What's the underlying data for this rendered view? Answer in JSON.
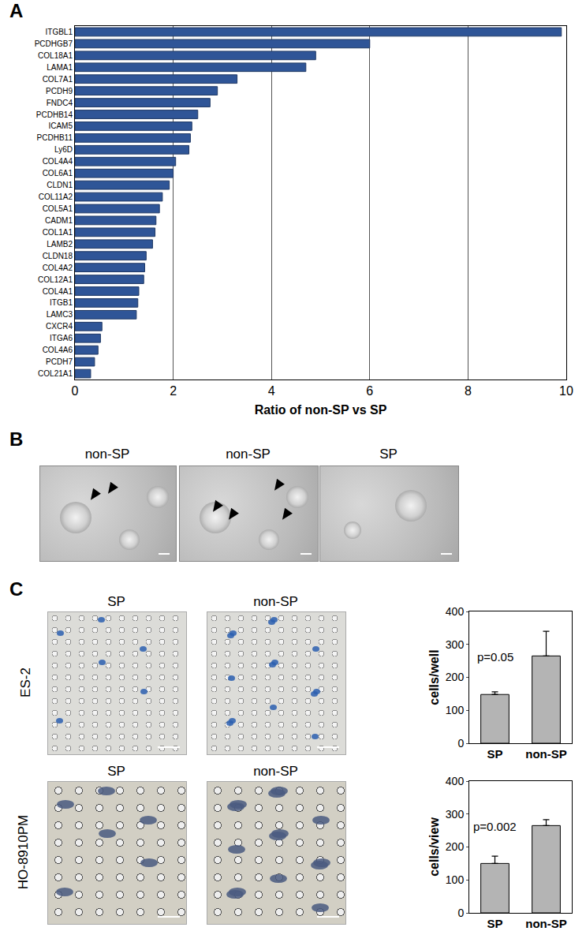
{
  "panel_labels": [
    "A",
    "B",
    "C"
  ],
  "chart_data": [
    {
      "type": "bar",
      "orientation": "horizontal",
      "categories": [
        "ITGBL1",
        "PCDHGB7",
        "COL18A1",
        "LAMA1",
        "COL7A1",
        "PCDH9",
        "FNDC4",
        "PCDHB14",
        "ICAM5",
        "PCDHB11",
        "Ly6D",
        "COL4A4",
        "COL6A1",
        "CLDN1",
        "COL11A2",
        "COL5A1",
        "CADM1",
        "COL1A1",
        "LAMB2",
        "CLDN18",
        "COL4A2",
        "COL12A1",
        "COL4A1",
        "ITGB1",
        "LAMC3",
        "CXCR4",
        "ITGA6",
        "COL4A6",
        "PCDH7",
        "COL21A1"
      ],
      "values": [
        9.9,
        6.0,
        4.9,
        4.7,
        3.3,
        2.9,
        2.75,
        2.5,
        2.38,
        2.35,
        2.32,
        2.05,
        2.0,
        1.92,
        1.78,
        1.72,
        1.65,
        1.63,
        1.58,
        1.45,
        1.42,
        1.4,
        1.3,
        1.28,
        1.25,
        0.55,
        0.52,
        0.47,
        0.4,
        0.32
      ],
      "color": "#2f5597",
      "xlabel": "Ratio of non-SP vs SP",
      "xlim": [
        0,
        10
      ],
      "xticks": [
        0,
        2,
        4,
        6,
        8,
        10
      ],
      "grid": true
    },
    {
      "type": "bar",
      "categories": [
        "SP",
        "non-SP"
      ],
      "values": [
        148,
        265
      ],
      "error": [
        8,
        75
      ],
      "color": "#b4b4b4",
      "ylabel": "cells/well",
      "ylim": [
        0,
        400
      ],
      "yticks": [
        0,
        100,
        200,
        300,
        400
      ],
      "grid": false,
      "annotations": [
        {
          "category": "SP",
          "text": "p=0.05"
        }
      ]
    },
    {
      "type": "bar",
      "categories": [
        "SP",
        "non-SP"
      ],
      "values": [
        150,
        265
      ],
      "error": [
        22,
        18
      ],
      "color": "#b4b4b4",
      "ylabel": "cells/view",
      "ylim": [
        0,
        400
      ],
      "yticks": [
        0,
        100,
        200,
        300,
        400
      ],
      "grid": false,
      "annotations": [
        {
          "category": "SP",
          "text": "p=0.002"
        }
      ]
    }
  ],
  "panel_b": {
    "captions": [
      "non-SP",
      "non-SP",
      "SP"
    ]
  },
  "panel_c": {
    "rows": [
      {
        "cell_line": "ES-2",
        "captions": [
          "SP",
          "non-SP"
        ]
      },
      {
        "cell_line": "HO-8910PM",
        "captions": [
          "SP",
          "non-SP"
        ]
      }
    ]
  }
}
